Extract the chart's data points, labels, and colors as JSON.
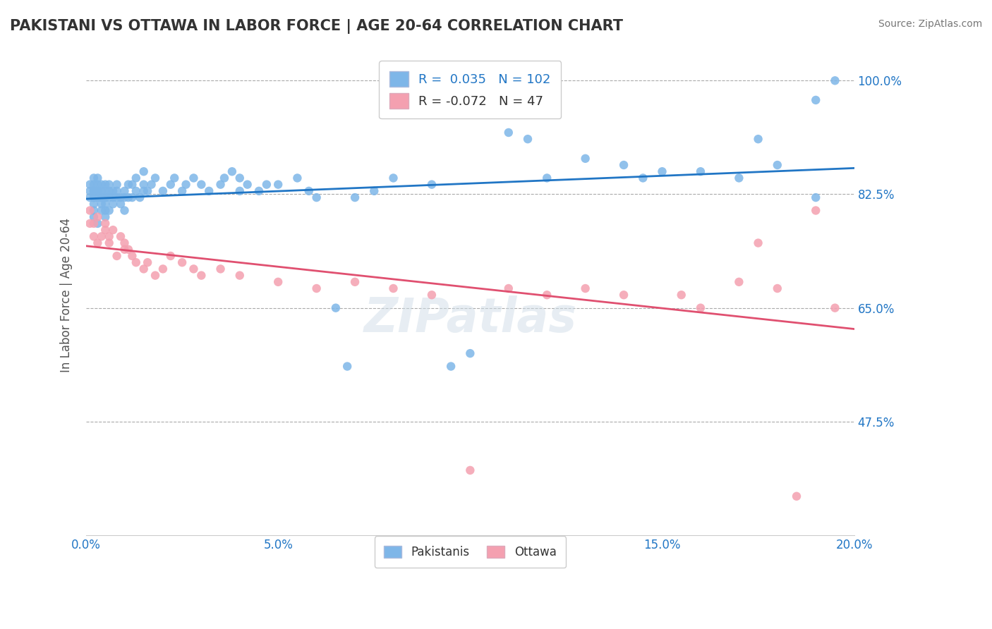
{
  "title": "PAKISTANI VS OTTAWA IN LABOR FORCE | AGE 20-64 CORRELATION CHART",
  "source_text": "Source: ZipAtlas.com",
  "xlabel": "",
  "ylabel": "In Labor Force | Age 20-64",
  "xlim": [
    0.0,
    0.2
  ],
  "ylim": [
    0.3,
    1.04
  ],
  "xtick_labels": [
    "0.0%",
    "5.0%",
    "10.0%",
    "15.0%",
    "20.0%"
  ],
  "xtick_values": [
    0.0,
    0.05,
    0.1,
    0.15,
    0.2
  ],
  "ytick_labels": [
    "47.5%",
    "65.0%",
    "82.5%",
    "100.0%"
  ],
  "ytick_values": [
    0.475,
    0.65,
    0.825,
    1.0
  ],
  "blue_R": 0.035,
  "blue_N": 102,
  "pink_R": -0.072,
  "pink_N": 47,
  "blue_color": "#7eb6e8",
  "pink_color": "#f4a0b0",
  "blue_line_color": "#2176c5",
  "pink_line_color": "#e05070",
  "legend_label_blue": "Pakistanis",
  "legend_label_pink": "Ottawa",
  "watermark": "ZIPatlas",
  "blue_scatter_x": [
    0.001,
    0.001,
    0.001,
    0.002,
    0.002,
    0.002,
    0.002,
    0.002,
    0.002,
    0.002,
    0.002,
    0.002,
    0.003,
    0.003,
    0.003,
    0.003,
    0.003,
    0.003,
    0.003,
    0.004,
    0.004,
    0.004,
    0.004,
    0.004,
    0.004,
    0.005,
    0.005,
    0.005,
    0.005,
    0.005,
    0.005,
    0.005,
    0.006,
    0.006,
    0.006,
    0.006,
    0.007,
    0.007,
    0.007,
    0.008,
    0.008,
    0.008,
    0.009,
    0.009,
    0.01,
    0.01,
    0.01,
    0.011,
    0.011,
    0.012,
    0.012,
    0.013,
    0.013,
    0.014,
    0.015,
    0.015,
    0.015,
    0.016,
    0.017,
    0.018,
    0.02,
    0.022,
    0.023,
    0.025,
    0.026,
    0.028,
    0.03,
    0.032,
    0.035,
    0.036,
    0.038,
    0.04,
    0.04,
    0.042,
    0.045,
    0.047,
    0.05,
    0.055,
    0.058,
    0.06,
    0.065,
    0.068,
    0.07,
    0.075,
    0.08,
    0.09,
    0.095,
    0.1,
    0.11,
    0.115,
    0.12,
    0.13,
    0.14,
    0.145,
    0.15,
    0.16,
    0.17,
    0.175,
    0.18,
    0.19,
    0.19,
    0.195
  ],
  "blue_scatter_y": [
    0.82,
    0.83,
    0.84,
    0.8,
    0.81,
    0.82,
    0.83,
    0.84,
    0.85,
    0.82,
    0.83,
    0.79,
    0.78,
    0.82,
    0.83,
    0.84,
    0.85,
    0.83,
    0.82,
    0.8,
    0.82,
    0.83,
    0.84,
    0.82,
    0.81,
    0.8,
    0.81,
    0.82,
    0.83,
    0.84,
    0.82,
    0.79,
    0.8,
    0.82,
    0.83,
    0.84,
    0.82,
    0.83,
    0.81,
    0.82,
    0.83,
    0.84,
    0.82,
    0.81,
    0.8,
    0.82,
    0.83,
    0.82,
    0.84,
    0.82,
    0.84,
    0.83,
    0.85,
    0.82,
    0.83,
    0.84,
    0.86,
    0.83,
    0.84,
    0.85,
    0.83,
    0.84,
    0.85,
    0.83,
    0.84,
    0.85,
    0.84,
    0.83,
    0.84,
    0.85,
    0.86,
    0.83,
    0.85,
    0.84,
    0.83,
    0.84,
    0.84,
    0.85,
    0.83,
    0.82,
    0.65,
    0.56,
    0.82,
    0.83,
    0.85,
    0.84,
    0.56,
    0.58,
    0.92,
    0.91,
    0.85,
    0.88,
    0.87,
    0.85,
    0.86,
    0.86,
    0.85,
    0.91,
    0.87,
    0.82,
    0.97,
    1.0
  ],
  "pink_scatter_x": [
    0.001,
    0.001,
    0.002,
    0.002,
    0.003,
    0.003,
    0.004,
    0.005,
    0.005,
    0.006,
    0.006,
    0.007,
    0.008,
    0.009,
    0.01,
    0.01,
    0.011,
    0.012,
    0.013,
    0.015,
    0.016,
    0.018,
    0.02,
    0.022,
    0.025,
    0.028,
    0.03,
    0.035,
    0.04,
    0.05,
    0.06,
    0.07,
    0.08,
    0.09,
    0.1,
    0.11,
    0.12,
    0.13,
    0.14,
    0.155,
    0.16,
    0.17,
    0.175,
    0.18,
    0.185,
    0.19,
    0.195
  ],
  "pink_scatter_y": [
    0.78,
    0.8,
    0.76,
    0.78,
    0.75,
    0.79,
    0.76,
    0.77,
    0.78,
    0.75,
    0.76,
    0.77,
    0.73,
    0.76,
    0.74,
    0.75,
    0.74,
    0.73,
    0.72,
    0.71,
    0.72,
    0.7,
    0.71,
    0.73,
    0.72,
    0.71,
    0.7,
    0.71,
    0.7,
    0.69,
    0.68,
    0.69,
    0.68,
    0.67,
    0.4,
    0.68,
    0.67,
    0.68,
    0.67,
    0.67,
    0.65,
    0.69,
    0.75,
    0.68,
    0.36,
    0.8,
    0.65
  ]
}
